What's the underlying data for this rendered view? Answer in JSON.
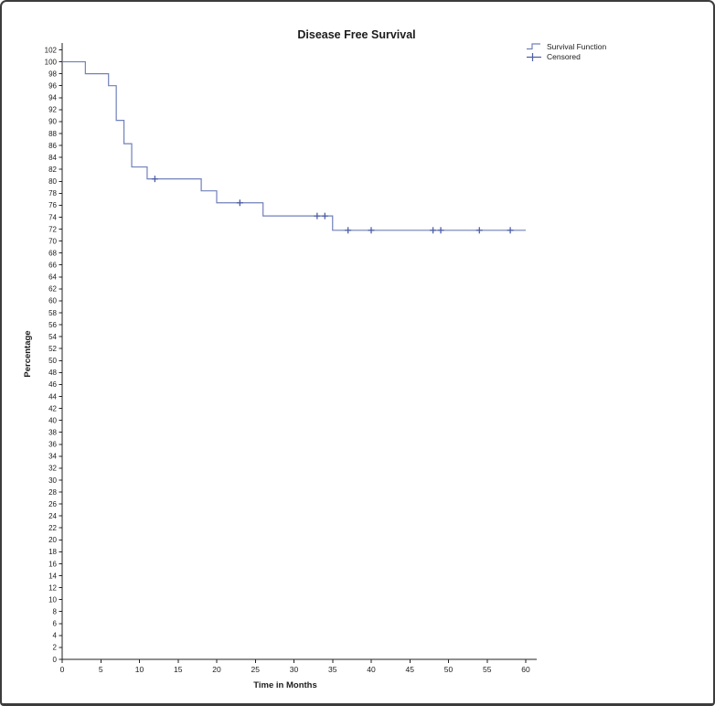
{
  "chart_data": {
    "type": "line",
    "subtype": "kaplan-meier-step",
    "title": "Disease Free Survival",
    "xlabel": "Time in Months",
    "ylabel": "Percentage",
    "xlim": [
      0,
      60
    ],
    "ylim": [
      0,
      102
    ],
    "x_ticks": [
      0,
      5,
      10,
      15,
      20,
      25,
      30,
      35,
      40,
      45,
      50,
      55,
      60
    ],
    "y_tick_step": 2,
    "grid": false,
    "legend_position": "top-right",
    "colors": {
      "survival_line": "#7180ba",
      "censored_mark": "#4d5ea6",
      "axis": "#222222"
    },
    "series": [
      {
        "name": "Survival Function",
        "style": "step",
        "points": [
          [
            0,
            100
          ],
          [
            3,
            100
          ],
          [
            3,
            98
          ],
          [
            6,
            98
          ],
          [
            6,
            96
          ],
          [
            7,
            96
          ],
          [
            7,
            90.2
          ],
          [
            8,
            90.2
          ],
          [
            8,
            86.3
          ],
          [
            9,
            86.3
          ],
          [
            9,
            82.4
          ],
          [
            11,
            82.4
          ],
          [
            11,
            80.4
          ],
          [
            18,
            80.4
          ],
          [
            18,
            78.4
          ],
          [
            20,
            78.4
          ],
          [
            20,
            76.4
          ],
          [
            26,
            76.4
          ],
          [
            26,
            74.2
          ],
          [
            35,
            74.2
          ],
          [
            35,
            71.8
          ],
          [
            60,
            71.8
          ]
        ]
      },
      {
        "name": "Censored",
        "style": "plus-marker",
        "points": [
          [
            12,
            80.4
          ],
          [
            23,
            76.4
          ],
          [
            33,
            74.2
          ],
          [
            34,
            74.2
          ],
          [
            37,
            71.8
          ],
          [
            40,
            71.8
          ],
          [
            48,
            71.8
          ],
          [
            49,
            71.8
          ],
          [
            54,
            71.8
          ],
          [
            58,
            71.8
          ]
        ]
      }
    ],
    "legend": [
      {
        "label": "Survival Function",
        "glyph": "step-line"
      },
      {
        "label": "Censored",
        "glyph": "plus"
      }
    ]
  }
}
